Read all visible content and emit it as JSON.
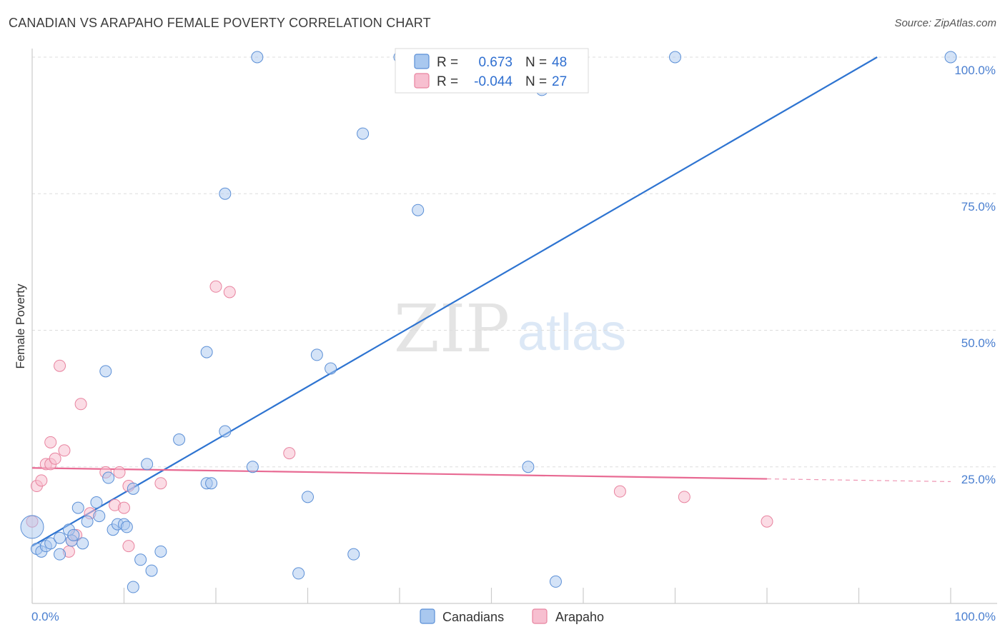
{
  "title": "CANADIAN VS ARAPAHO FEMALE POVERTY CORRELATION CHART",
  "source": "Source: ZipAtlas.com",
  "watermark": {
    "zip": "ZIP",
    "atlas": "atlas"
  },
  "colors": {
    "canadians_fill": "#a9c8ef",
    "canadians_stroke": "#5b8fd6",
    "canadians_line": "#2e74d1",
    "arapaho_fill": "#f7bfd0",
    "arapaho_stroke": "#e8839f",
    "arapaho_line": "#e86a93",
    "tick_text": "#4a7fd0",
    "grid": "#dddddd"
  },
  "legend": {
    "rows": [
      {
        "r_label": "R =",
        "r_value": "0.673",
        "n_label": "N =",
        "n_value": "48"
      },
      {
        "r_label": "R =",
        "r_value": "-0.044",
        "n_label": "N =",
        "n_value": "27"
      }
    ]
  },
  "chart_data": {
    "type": "scatter",
    "title": "CANADIAN VS ARAPAHO FEMALE POVERTY CORRELATION CHART",
    "xlabel": "",
    "ylabel": "Female Poverty",
    "xlim": [
      0,
      100
    ],
    "ylim": [
      0,
      100
    ],
    "x_tick_labels": [
      "0.0%",
      "100.0%"
    ],
    "y_tick_labels": [
      "100.0%",
      "75.0%",
      "50.0%",
      "25.0%"
    ],
    "y_ticks": [
      100,
      75,
      50,
      25
    ],
    "series": [
      {
        "name": "Canadians",
        "points": [
          [
            0,
            14
          ],
          [
            0.5,
            10
          ],
          [
            1,
            9.5
          ],
          [
            1.5,
            10.5
          ],
          [
            2,
            11
          ],
          [
            3,
            9
          ],
          [
            3,
            12
          ],
          [
            4,
            13.5
          ],
          [
            4.3,
            11.5
          ],
          [
            4.5,
            12.5
          ],
          [
            5,
            17.5
          ],
          [
            5.5,
            11
          ],
          [
            6,
            15
          ],
          [
            7,
            18.5
          ],
          [
            7.3,
            16
          ],
          [
            8,
            42.5
          ],
          [
            8.3,
            23
          ],
          [
            8.8,
            13.5
          ],
          [
            9.3,
            14.5
          ],
          [
            10,
            14.5
          ],
          [
            10.3,
            14
          ],
          [
            11,
            21
          ],
          [
            11,
            3
          ],
          [
            11.8,
            8
          ],
          [
            12.5,
            25.5
          ],
          [
            13,
            6
          ],
          [
            14,
            9.5
          ],
          [
            16,
            30
          ],
          [
            19,
            46
          ],
          [
            19,
            22
          ],
          [
            19.5,
            22
          ],
          [
            21,
            31.5
          ],
          [
            21,
            75
          ],
          [
            24,
            25
          ],
          [
            24.5,
            100
          ],
          [
            29,
            5.5
          ],
          [
            30,
            19.5
          ],
          [
            31,
            45.5
          ],
          [
            32.5,
            43
          ],
          [
            35,
            9
          ],
          [
            36,
            86
          ],
          [
            40,
            100
          ],
          [
            42,
            72
          ],
          [
            54,
            25
          ],
          [
            55.5,
            94
          ],
          [
            57,
            4
          ],
          [
            70,
            100
          ],
          [
            100,
            100
          ]
        ],
        "trend": {
          "x": [
            0,
            92
          ],
          "y": [
            10.5,
            100
          ]
        }
      },
      {
        "name": "Arapaho",
        "points": [
          [
            0,
            15
          ],
          [
            0.5,
            21.5
          ],
          [
            1,
            22.5
          ],
          [
            1.5,
            25.5
          ],
          [
            2,
            25.5
          ],
          [
            2,
            29.5
          ],
          [
            2.5,
            26.5
          ],
          [
            3,
            43.5
          ],
          [
            3.5,
            28
          ],
          [
            4,
            9.5
          ],
          [
            4.3,
            11.5
          ],
          [
            4.8,
            12.5
          ],
          [
            5.3,
            36.5
          ],
          [
            6.3,
            16.5
          ],
          [
            8,
            24
          ],
          [
            9,
            18
          ],
          [
            9.5,
            24
          ],
          [
            10,
            17.5
          ],
          [
            10.5,
            10.5
          ],
          [
            10.5,
            21.5
          ],
          [
            14,
            22
          ],
          [
            20,
            58
          ],
          [
            21.5,
            57
          ],
          [
            28,
            27.5
          ],
          [
            64,
            20.5
          ],
          [
            71,
            19.5
          ],
          [
            80,
            15
          ]
        ],
        "trend": {
          "x": [
            0,
            80
          ],
          "y": [
            24.8,
            22.8
          ]
        },
        "trend_dashed": {
          "x": [
            80,
            100
          ],
          "y": [
            22.8,
            22.3
          ]
        }
      }
    ]
  },
  "bottom_legend": [
    "Canadians",
    "Arapaho"
  ]
}
